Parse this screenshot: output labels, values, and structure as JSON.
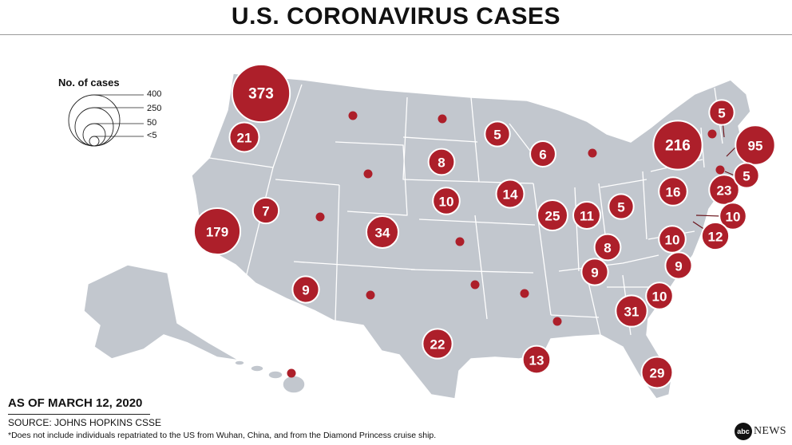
{
  "header": {
    "title": "U.S. CORONAVIRUS CASES"
  },
  "legend": {
    "title": "No. of cases",
    "levels": [
      {
        "label": "400",
        "value": 400
      },
      {
        "label": "250",
        "value": 250
      },
      {
        "label": "50",
        "value": 50
      },
      {
        "label": "<5",
        "value": 5
      }
    ]
  },
  "colors": {
    "bubble": "#ad1f2a",
    "land": "#c2c7ce",
    "border": "#ffffff"
  },
  "states": [
    {
      "state": "Washington",
      "value": 373,
      "label": "373"
    },
    {
      "state": "California",
      "value": 179,
      "label": "179"
    },
    {
      "state": "New York",
      "value": 216,
      "label": "216"
    },
    {
      "state": "Massachusetts",
      "value": 95,
      "label": "95"
    },
    {
      "state": "Oregon",
      "value": 21,
      "label": "21"
    },
    {
      "state": "Nevada",
      "value": 7,
      "label": "7"
    },
    {
      "state": "Arizona",
      "value": 9,
      "label": "9"
    },
    {
      "state": "Colorado",
      "value": 34,
      "label": "34"
    },
    {
      "state": "Texas",
      "value": 22,
      "label": "22"
    },
    {
      "state": "South Dakota",
      "value": 8,
      "label": "8"
    },
    {
      "state": "Nebraska",
      "value": 10,
      "label": "10"
    },
    {
      "state": "Minnesota",
      "value": 5,
      "label": "5"
    },
    {
      "state": "Iowa",
      "value": 14,
      "label": "14"
    },
    {
      "state": "Wisconsin",
      "value": 6,
      "label": "6"
    },
    {
      "state": "Illinois",
      "value": 25,
      "label": "25"
    },
    {
      "state": "Indiana",
      "value": 11,
      "label": "11"
    },
    {
      "state": "Ohio",
      "value": 5,
      "label": "5"
    },
    {
      "state": "Kentucky",
      "value": 8,
      "label": "8"
    },
    {
      "state": "Tennessee",
      "value": 9,
      "label": "9"
    },
    {
      "state": "Louisiana",
      "value": 13,
      "label": "13"
    },
    {
      "state": "Georgia",
      "value": 31,
      "label": "31"
    },
    {
      "state": "Florida",
      "value": 29,
      "label": "29"
    },
    {
      "state": "South Carolina",
      "value": 10,
      "label": "10"
    },
    {
      "state": "North Carolina",
      "value": 9,
      "label": "9"
    },
    {
      "state": "Virginia",
      "value": 10,
      "label": "10"
    },
    {
      "state": "Pennsylvania",
      "value": 16,
      "label": "16"
    },
    {
      "state": "New Jersey",
      "value": 23,
      "label": "23"
    },
    {
      "state": "Rhode Island",
      "value": 5,
      "label": "5"
    },
    {
      "state": "New Hampshire",
      "value": 5,
      "label": "5"
    },
    {
      "state": "District of Columbia",
      "value": 10,
      "label": "10"
    },
    {
      "state": "Maryland",
      "value": 12,
      "label": "12"
    },
    {
      "state": "Montana",
      "value": null,
      "label": ""
    },
    {
      "state": "North Dakota",
      "value": null,
      "label": ""
    },
    {
      "state": "Wyoming",
      "value": null,
      "label": ""
    },
    {
      "state": "Utah",
      "value": null,
      "label": ""
    },
    {
      "state": "Kansas",
      "value": null,
      "label": ""
    },
    {
      "state": "New Mexico",
      "value": null,
      "label": ""
    },
    {
      "state": "Oklahoma",
      "value": null,
      "label": ""
    },
    {
      "state": "Arkansas",
      "value": null,
      "label": ""
    },
    {
      "state": "Mississippi",
      "value": null,
      "label": ""
    },
    {
      "state": "Michigan",
      "value": null,
      "label": ""
    },
    {
      "state": "Vermont",
      "value": null,
      "label": ""
    },
    {
      "state": "Connecticut",
      "value": null,
      "label": ""
    },
    {
      "state": "Hawaii",
      "value": null,
      "label": ""
    }
  ],
  "footer": {
    "as_of": "AS OF MARCH 12, 2020",
    "source": "SOURCE: JOHNS HOPKINS CSSE",
    "note": "*Does not include individuals repatriated to the US from Wuhan, China, and from the Diamond Princess cruise ship.",
    "brand_logo": "abc",
    "brand_name": "NEWS"
  }
}
